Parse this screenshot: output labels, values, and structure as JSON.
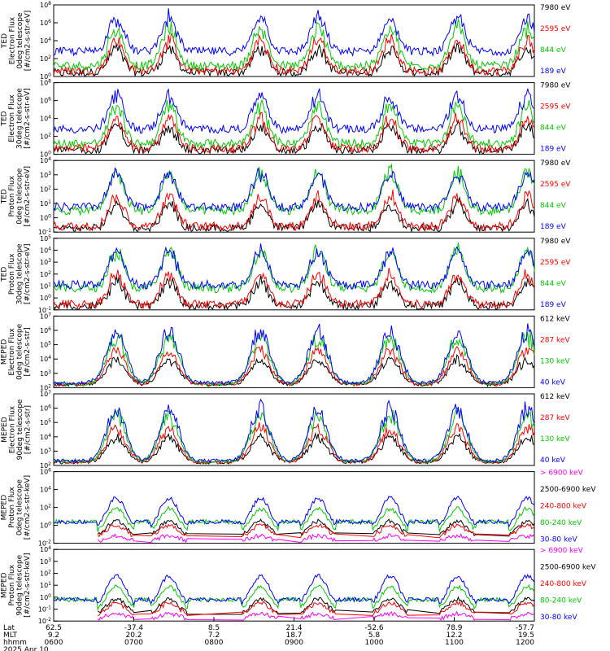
{
  "chart_data": {
    "type": "line",
    "date_label": "2025 Apr 10",
    "x_rows": [
      {
        "name": "Lat",
        "values": [
          "62.5",
          "-37.4",
          "8.5",
          "21.4",
          "-52.6",
          "78.9",
          "-57.7"
        ]
      },
      {
        "name": "MLT",
        "values": [
          "9.2",
          "20.2",
          "7.2",
          "18.7",
          "5.8",
          "12.2",
          "19.5"
        ]
      },
      {
        "name": "hhmm",
        "values": [
          "0600",
          "0700",
          "0800",
          "0900",
          "1000",
          "1100",
          "1200"
        ]
      }
    ],
    "colors": {
      "black": "#000000",
      "red": "#ff0000",
      "green": "#00cc00",
      "blue": "#0000ff",
      "magenta": "#ff00ff"
    },
    "panels": [
      {
        "ylabel": [
          "TED",
          "Electron Flux",
          "0deg telescope",
          "[#/cm2-s-str-eV]"
        ],
        "yticks": [
          "10^0",
          "10^2",
          "10^4",
          "10^6",
          "10^8"
        ],
        "legend": [
          {
            "label": "7980 eV",
            "color": "#000000"
          },
          {
            "label": "2595 eV",
            "color": "#ff0000"
          },
          {
            "label": "844 eV",
            "color": "#00cc00"
          },
          {
            "label": "189 eV",
            "color": "#0000ff"
          }
        ]
      },
      {
        "ylabel": [
          "TED",
          "Electron Flux",
          "30deg telescope",
          "[#/cm2-s-str-eV]"
        ],
        "yticks": [
          "10^0",
          "10^2",
          "10^4",
          "10^6",
          "10^8"
        ],
        "legend": [
          {
            "label": "7980 eV",
            "color": "#000000"
          },
          {
            "label": "2595 eV",
            "color": "#ff0000"
          },
          {
            "label": "844 eV",
            "color": "#00cc00"
          },
          {
            "label": "189 eV",
            "color": "#0000ff"
          }
        ]
      },
      {
        "ylabel": [
          "TED",
          "Proton Flux",
          "0deg telescope",
          "[#/cm2-s-str-eV]"
        ],
        "yticks": [
          "10^-1",
          "10^0",
          "10^1",
          "10^2",
          "10^3",
          "10^4"
        ],
        "legend": [
          {
            "label": "7980 eV",
            "color": "#000000"
          },
          {
            "label": "2595 eV",
            "color": "#ff0000"
          },
          {
            "label": "844 eV",
            "color": "#00cc00"
          },
          {
            "label": "189 eV",
            "color": "#0000ff"
          }
        ]
      },
      {
        "ylabel": [
          "TED",
          "Proton Flux",
          "30deg telescope",
          "[#/cm2-s-str-eV]"
        ],
        "yticks": [
          "10^-1",
          "10^0",
          "10^1",
          "10^2",
          "10^3",
          "10^4",
          "10^5"
        ],
        "legend": [
          {
            "label": "7980 eV",
            "color": "#000000"
          },
          {
            "label": "2595 eV",
            "color": "#ff0000"
          },
          {
            "label": "844 eV",
            "color": "#00cc00"
          },
          {
            "label": "189 eV",
            "color": "#0000ff"
          }
        ]
      },
      {
        "ylabel": [
          "MEPED",
          "Electron Flux",
          "0deg telescope",
          "[#/cm2-s-str]"
        ],
        "yticks": [
          "10^2",
          "10^3",
          "10^4",
          "10^5",
          "10^6",
          "10^7"
        ],
        "legend": [
          {
            "label": "612 keV",
            "color": "#000000"
          },
          {
            "label": "287 keV",
            "color": "#ff0000"
          },
          {
            "label": "130 keV",
            "color": "#00cc00"
          },
          {
            "label": "40 keV",
            "color": "#0000ff"
          }
        ]
      },
      {
        "ylabel": [
          "MEPED",
          "Electron Flux",
          "90deg telescope",
          "[#/cm2-s-str]"
        ],
        "yticks": [
          "10^2",
          "10^3",
          "10^4",
          "10^5",
          "10^6",
          "10^7"
        ],
        "legend": [
          {
            "label": "612 keV",
            "color": "#000000"
          },
          {
            "label": "287 keV",
            "color": "#ff0000"
          },
          {
            "label": "130 keV",
            "color": "#00cc00"
          },
          {
            "label": "40 keV",
            "color": "#0000ff"
          }
        ]
      },
      {
        "ylabel": [
          "MEPED",
          "Proton Flux",
          "0deg telescope",
          "[#/cm2-s-str-keV]"
        ],
        "yticks": [
          "10^-2",
          "10^0",
          "10^2",
          "10^4",
          "10^6"
        ],
        "legend": [
          {
            "label": "> 6900 keV",
            "color": "#ff00ff"
          },
          {
            "label": "2500-6900 keV",
            "color": "#000000"
          },
          {
            "label": "240-800 keV",
            "color": "#ff0000"
          },
          {
            "label": "80-240 keV",
            "color": "#00cc00"
          },
          {
            "label": "30-80 keV",
            "color": "#0000ff"
          }
        ]
      },
      {
        "ylabel": [
          "MEPED",
          "Proton Flux",
          "90deg telescope",
          "[#/cm2-s-str-keV]"
        ],
        "yticks": [
          "10^-2",
          "10^-1",
          "10^0",
          "10^1",
          "10^2",
          "10^3",
          "10^4"
        ],
        "legend": [
          {
            "label": "> 6900 keV",
            "color": "#ff00ff"
          },
          {
            "label": "2500-6900 keV",
            "color": "#000000"
          },
          {
            "label": "240-800 keV",
            "color": "#ff0000"
          },
          {
            "label": "80-240 keV",
            "color": "#00cc00"
          },
          {
            "label": "30-80 keV",
            "color": "#0000ff"
          }
        ]
      }
    ]
  }
}
